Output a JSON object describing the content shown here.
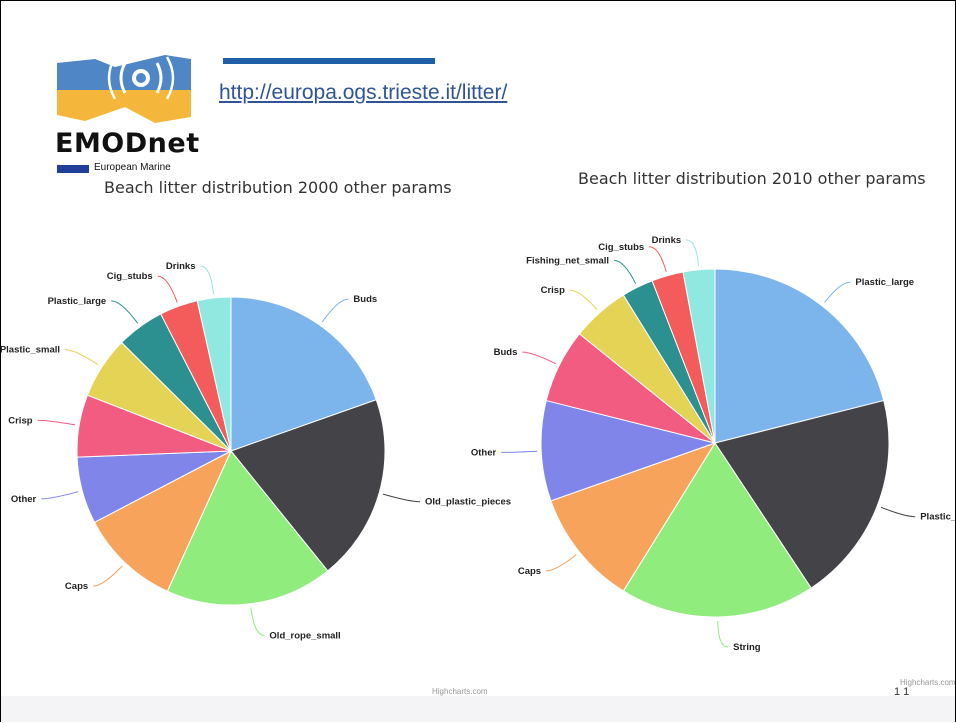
{
  "header": {
    "url": "http://europa.ogs.trieste.it/litter/",
    "logo_text": "EMODnet",
    "logo_subtext": "European Marine",
    "accent_color": "#1f5fa8"
  },
  "credits": "Highcharts.com",
  "page_mark": "1 1",
  "chart_data": [
    {
      "type": "pie",
      "title": "Beach litter distribution 2000 other params",
      "slices": [
        {
          "label": "Buds",
          "value": 19.5,
          "color": "#7cb5ec"
        },
        {
          "label": "Old_plastic_pieces",
          "value": 19.5,
          "color": "#434348"
        },
        {
          "label": "Old_rope_small",
          "value": 17.5,
          "color": "#90ed7d"
        },
        {
          "label": "Caps",
          "value": 10.5,
          "color": "#f7a35c"
        },
        {
          "label": "Other",
          "value": 7,
          "color": "#8085e9"
        },
        {
          "label": "Crisp",
          "value": 6.5,
          "color": "#f15c80"
        },
        {
          "label": "Plastic_small",
          "value": 6.5,
          "color": "#e4d354"
        },
        {
          "label": "Plastic_large",
          "value": 5,
          "color": "#2b908f"
        },
        {
          "label": "Cig_stubs",
          "value": 4,
          "color": "#f45b5b"
        },
        {
          "label": "Drinks",
          "value": 3.5,
          "color": "#91e8e1"
        }
      ]
    },
    {
      "type": "pie",
      "title": "Beach litter distribution 2010 other params",
      "slices": [
        {
          "label": "Plastic_large",
          "value": 21.5,
          "color": "#7cb5ec"
        },
        {
          "label": "Plastic_small",
          "value": 20,
          "color": "#434348"
        },
        {
          "label": "String",
          "value": 18.5,
          "color": "#90ed7d"
        },
        {
          "label": "Caps",
          "value": 11,
          "color": "#f7a35c"
        },
        {
          "label": "Other",
          "value": 9.5,
          "color": "#8085e9"
        },
        {
          "label": "Buds",
          "value": 7,
          "color": "#f15c80"
        },
        {
          "label": "Crisp",
          "value": 5.5,
          "color": "#e4d354"
        },
        {
          "label": "Fishing_net_small",
          "value": 3,
          "color": "#2b908f"
        },
        {
          "label": "Cig_stubs",
          "value": 3,
          "color": "#f45b5b"
        },
        {
          "label": "Drinks",
          "value": 3,
          "color": "#91e8e1"
        }
      ]
    }
  ]
}
